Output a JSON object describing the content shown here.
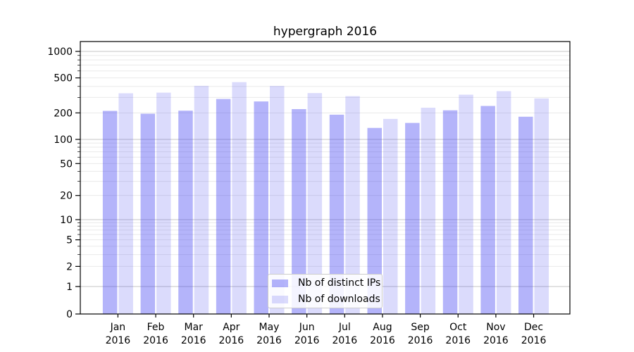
{
  "chart_data": {
    "type": "bar",
    "title": "hypergraph 2016",
    "categories": [
      "Jan",
      "Feb",
      "Mar",
      "Apr",
      "May",
      "Jun",
      "Jul",
      "Aug",
      "Sep",
      "Oct",
      "Nov",
      "Dec"
    ],
    "category_year": "2016",
    "series": [
      {
        "name": "Nb of distinct IPs",
        "color": "rgba(40,40,240,0.35)",
        "values": [
          211,
          196,
          212,
          288,
          270,
          221,
          191,
          135,
          154,
          214,
          240,
          181
        ]
      },
      {
        "name": "Nb of downloads",
        "color": "rgba(40,40,240,0.17)",
        "values": [
          334,
          340,
          406,
          447,
          405,
          336,
          310,
          171,
          229,
          322,
          353,
          292
        ]
      }
    ],
    "yscale": "symlog",
    "yticks": [
      0,
      1,
      2,
      5,
      10,
      20,
      50,
      100,
      200,
      500,
      1000
    ],
    "ylim": [
      0,
      1270
    ],
    "xlabel": "",
    "ylabel": "",
    "grid": true,
    "legend_position": "lower center"
  },
  "colors": {
    "grid_major": "#c6c6c6",
    "grid_minor": "#eaeaea",
    "spine": "#000000",
    "text": "#000000"
  }
}
